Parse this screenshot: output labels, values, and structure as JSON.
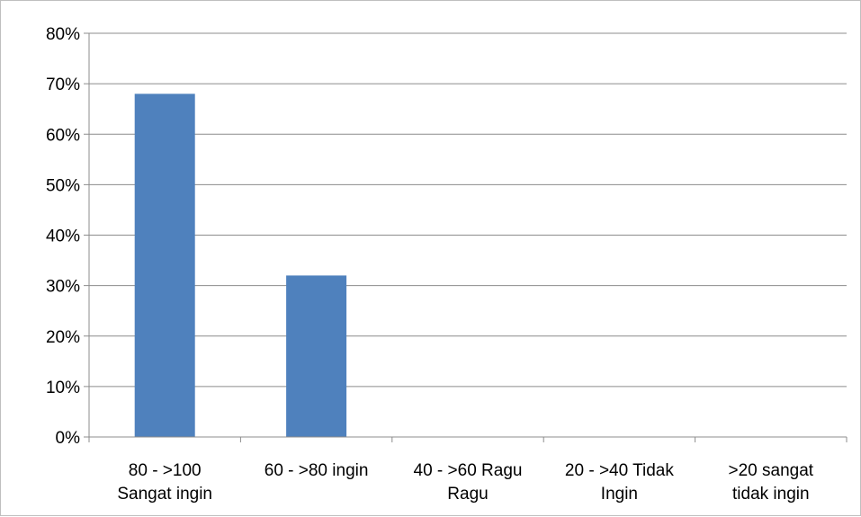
{
  "chart_data": {
    "type": "bar",
    "categories": [
      [
        "80 - >100",
        "Sangat ingin"
      ],
      [
        "60 - >80 ingin"
      ],
      [
        "40 - >60 Ragu",
        "Ragu"
      ],
      [
        "20 - >40 Tidak",
        "Ingin"
      ],
      [
        ">20 sangat",
        "tidak ingin"
      ]
    ],
    "values": [
      0.68,
      0.32,
      0,
      0,
      0
    ],
    "ylim": [
      0,
      0.8
    ],
    "yticks": [
      "0%",
      "10%",
      "20%",
      "30%",
      "40%",
      "50%",
      "60%",
      "70%",
      "80%"
    ],
    "grid": true,
    "legend": "none",
    "bar_color": "#4f81bd",
    "grid_color": "#8c8c8c"
  }
}
